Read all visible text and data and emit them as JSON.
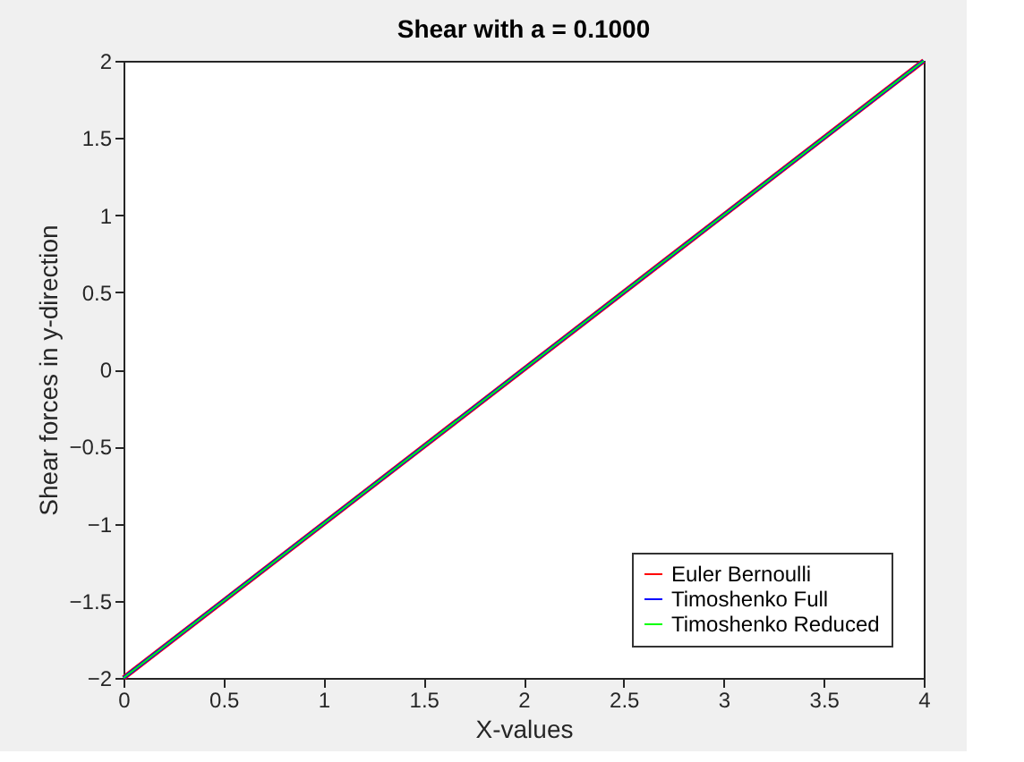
{
  "chart_data": {
    "type": "line",
    "title": "Shear with a = 0.1000",
    "xlabel": "X-values",
    "ylabel": "Shear forces in y-direction",
    "x": [
      0,
      4
    ],
    "series": [
      {
        "name": "Euler Bernoulli",
        "color": "#ff0000",
        "values": [
          -2,
          2
        ]
      },
      {
        "name": "Timoshenko Full",
        "color": "#0000ff",
        "values": [
          -2,
          2
        ]
      },
      {
        "name": "Timoshenko Reduced",
        "color": "#00ff00",
        "values": [
          -2,
          2
        ]
      }
    ],
    "xlim": [
      0,
      4
    ],
    "xticks": [
      0,
      0.5,
      1,
      1.5,
      2,
      2.5,
      3,
      3.5,
      4
    ],
    "ylim": [
      -2,
      2
    ],
    "yticks": [
      -2,
      -1.5,
      -1,
      -0.5,
      0,
      0.5,
      1,
      1.5,
      2
    ],
    "grid": false,
    "legend": "bottom right",
    "marker": "none",
    "line_style": "solid"
  }
}
